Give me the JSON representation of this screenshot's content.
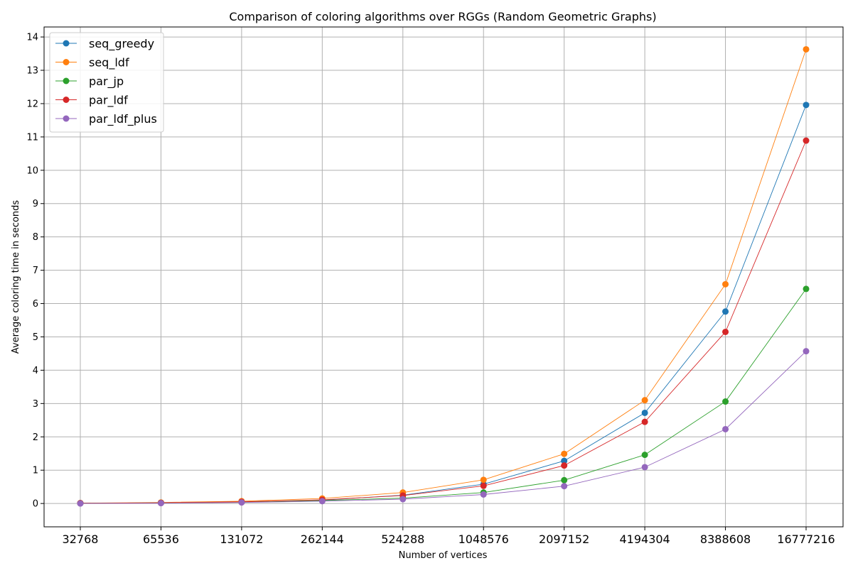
{
  "chart_data": {
    "type": "line",
    "title": "Comparison of coloring algorithms over RGGs (Random Geometric Graphs)",
    "xlabel": "Number of vertices",
    "ylabel": "Average coloring time in seconds",
    "categories": [
      "32768",
      "65536",
      "131072",
      "262144",
      "524288",
      "1048576",
      "2097152",
      "4194304",
      "8388608",
      "16777216"
    ],
    "ylim": [
      -0.7,
      14.3
    ],
    "yticks": [
      0,
      1,
      2,
      3,
      4,
      5,
      6,
      7,
      8,
      9,
      10,
      11,
      12,
      13,
      14
    ],
    "grid": true,
    "legend_position": "top-left",
    "series": [
      {
        "name": "seq_greedy",
        "color": "#1f77b4",
        "values": [
          0.01,
          0.02,
          0.05,
          0.1,
          0.25,
          0.58,
          1.28,
          2.72,
          5.76,
          11.96
        ]
      },
      {
        "name": "seq_ldf",
        "color": "#ff7f0e",
        "values": [
          0.01,
          0.03,
          0.07,
          0.15,
          0.33,
          0.71,
          1.49,
          3.1,
          6.58,
          13.63
        ]
      },
      {
        "name": "par_jp",
        "color": "#2ca02c",
        "values": [
          0.01,
          0.02,
          0.04,
          0.09,
          0.16,
          0.33,
          0.7,
          1.46,
          3.06,
          6.44
        ]
      },
      {
        "name": "par_ldf",
        "color": "#d62728",
        "values": [
          0.01,
          0.02,
          0.05,
          0.11,
          0.24,
          0.53,
          1.14,
          2.45,
          5.15,
          10.89
        ]
      },
      {
        "name": "par_ldf_plus",
        "color": "#9467bd",
        "values": [
          0.0,
          0.01,
          0.03,
          0.07,
          0.13,
          0.27,
          0.52,
          1.09,
          2.23,
          4.57
        ]
      }
    ]
  }
}
